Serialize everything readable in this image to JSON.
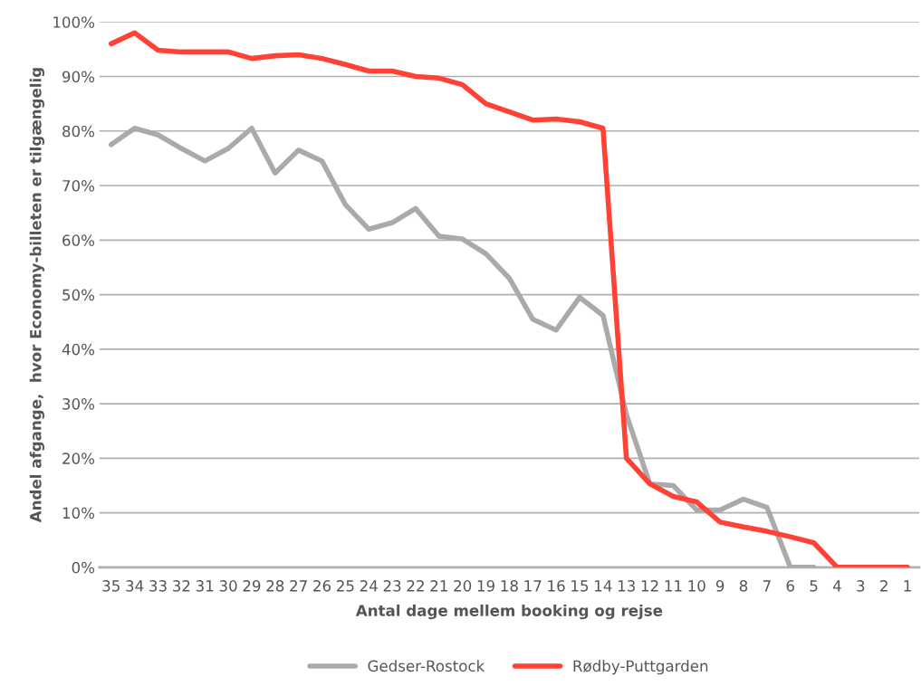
{
  "chart_data": {
    "type": "line",
    "xlabel": "Antal dage mellem booking og rejse",
    "ylabel": "Andel afgange,  hvor Economy-billeten er tilgængelig",
    "categories": [
      "35",
      "34",
      "33",
      "32",
      "31",
      "30",
      "29",
      "28",
      "27",
      "26",
      "25",
      "24",
      "23",
      "22",
      "21",
      "20",
      "19",
      "18",
      "17",
      "16",
      "15",
      "14",
      "13",
      "12",
      "11",
      "10",
      "9",
      "8",
      "7",
      "6",
      "5",
      "4",
      "3",
      "2",
      "1"
    ],
    "series": [
      {
        "name": "Gedser-Rostock",
        "color": "#aaaaaa",
        "values": [
          77.5,
          80.5,
          79.3,
          76.8,
          74.5,
          76.8,
          80.5,
          72.3,
          76.5,
          74.5,
          66.5,
          62,
          63.2,
          65.8,
          60.7,
          60.2,
          57.5,
          53,
          45.5,
          43.5,
          49.5,
          46.2,
          28,
          15.3,
          15,
          10.5,
          10.5,
          12.5,
          11,
          0,
          0,
          null,
          null,
          null,
          null
        ]
      },
      {
        "name": "Rødby-Puttgarden",
        "color": "#ff4136",
        "values": [
          96,
          98,
          94.8,
          94.5,
          94.5,
          94.5,
          93.3,
          93.8,
          94,
          93.3,
          92.2,
          91,
          91,
          90,
          89.7,
          88.5,
          85,
          83.5,
          82,
          82.2,
          81.7,
          80.5,
          20,
          15.3,
          13,
          12,
          8.3,
          7.4,
          6.6,
          5.6,
          4.5,
          0,
          0,
          0,
          0
        ]
      }
    ],
    "ylim": [
      0,
      100
    ],
    "yticks": [
      {
        "value": 0,
        "label": "0%"
      },
      {
        "value": 10,
        "label": "10%"
      },
      {
        "value": 20,
        "label": "20%"
      },
      {
        "value": 30,
        "label": "30%"
      },
      {
        "value": 40,
        "label": "40%"
      },
      {
        "value": 50,
        "label": "50%"
      },
      {
        "value": 60,
        "label": "60%"
      },
      {
        "value": 70,
        "label": "70%"
      },
      {
        "value": 80,
        "label": "80%"
      },
      {
        "value": 90,
        "label": "90%"
      },
      {
        "value": 100,
        "label": "100%"
      }
    ],
    "grid": "y",
    "legend": "bottom",
    "marker": "none",
    "line_style": "solid"
  }
}
